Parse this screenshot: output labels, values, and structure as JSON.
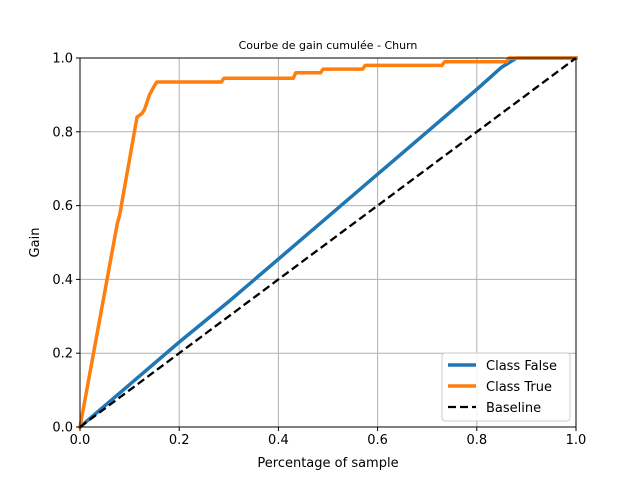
{
  "chart_data": {
    "type": "line",
    "title": "Courbe de gain cumulée - Churn",
    "xlabel": "Percentage of sample",
    "ylabel": "Gain",
    "xlim": [
      0,
      1
    ],
    "ylim": [
      0,
      1
    ],
    "xticks": [
      "0.0",
      "0.2",
      "0.4",
      "0.6",
      "0.8",
      "1.0"
    ],
    "yticks": [
      "0.0",
      "0.2",
      "0.4",
      "0.6",
      "0.8",
      "1.0"
    ],
    "grid": true,
    "legend_position": "lower-right",
    "series": [
      {
        "name": "Class False",
        "color": "#1f77b4",
        "style": "solid",
        "x": [
          0,
          0.1,
          0.2,
          0.3,
          0.4,
          0.5,
          0.6,
          0.7,
          0.8,
          0.85,
          0.88,
          1.0
        ],
        "y": [
          0,
          0.115,
          0.23,
          0.34,
          0.455,
          0.57,
          0.685,
          0.8,
          0.915,
          0.975,
          1.0,
          1.0
        ]
      },
      {
        "name": "Class True",
        "color": "#ff7f0e",
        "style": "solid",
        "x": [
          0,
          0.075,
          0.08,
          0.115,
          0.125,
          0.13,
          0.14,
          0.15,
          0.155,
          0.16,
          0.285,
          0.29,
          0.43,
          0.435,
          0.485,
          0.49,
          0.57,
          0.575,
          0.73,
          0.735,
          0.86,
          0.865,
          1.0
        ],
        "y": [
          0,
          0.55,
          0.575,
          0.84,
          0.85,
          0.86,
          0.9,
          0.925,
          0.935,
          0.935,
          0.935,
          0.945,
          0.945,
          0.96,
          0.96,
          0.97,
          0.97,
          0.98,
          0.98,
          0.99,
          0.99,
          1.0,
          1.0
        ]
      },
      {
        "name": "Baseline",
        "color": "#000000",
        "style": "dashed",
        "x": [
          0,
          1
        ],
        "y": [
          0,
          1
        ]
      }
    ]
  }
}
